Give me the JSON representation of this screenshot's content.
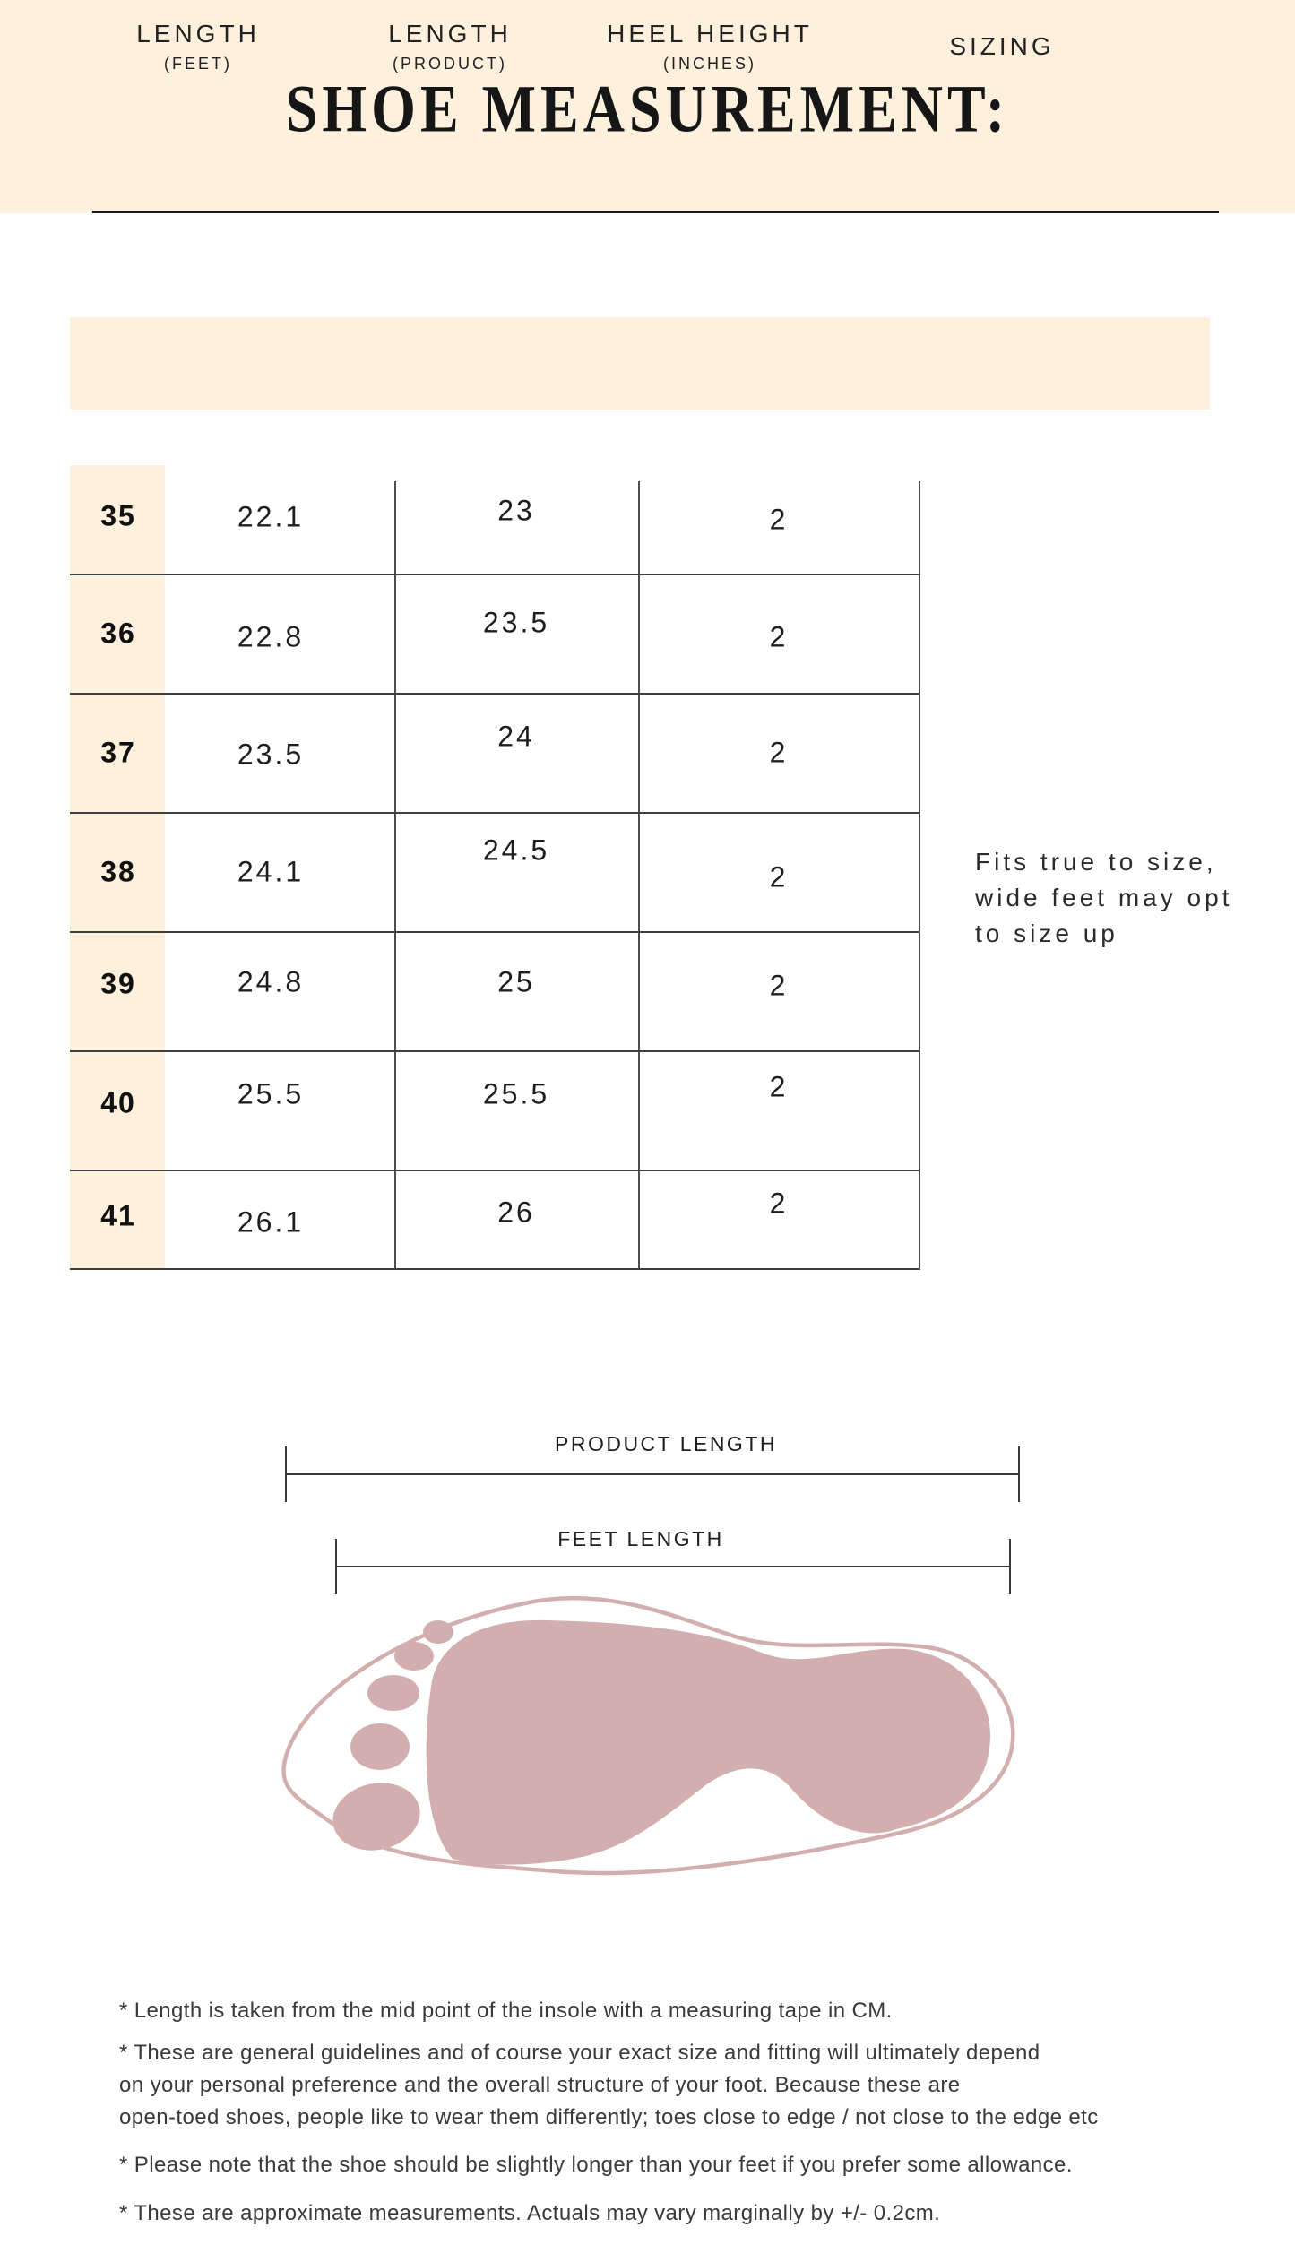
{
  "title": "SHOE MEASUREMENT:",
  "table": {
    "headers": [
      {
        "label": "LENGTH",
        "sub": "(FEET)"
      },
      {
        "label": "LENGTH",
        "sub": "(PRODUCT)"
      },
      {
        "label": "HEEL HEIGHT",
        "sub": "(INCHES)"
      },
      {
        "label": "SIZING",
        "sub": ""
      }
    ],
    "rows": [
      {
        "size": "35",
        "feet": "22.1",
        "product": "23",
        "heel": "2"
      },
      {
        "size": "36",
        "feet": "22.8",
        "product": "23.5",
        "heel": "2"
      },
      {
        "size": "37",
        "feet": "23.5",
        "product": "24",
        "heel": "2"
      },
      {
        "size": "38",
        "feet": "24.1",
        "product": "24.5",
        "heel": "2"
      },
      {
        "size": "39",
        "feet": "24.8",
        "product": "25",
        "heel": "2"
      },
      {
        "size": "40",
        "feet": "25.5",
        "product": "25.5",
        "heel": "2"
      },
      {
        "size": "41",
        "feet": "26.1",
        "product": "26",
        "heel": "2"
      }
    ]
  },
  "sizing_note": {
    "lines": [
      "Fits true to size,",
      "wide feet may opt",
      "to size up"
    ]
  },
  "diagram": {
    "product_label": "PRODUCT LENGTH",
    "feet_label": "FEET LENGTH"
  },
  "footnotes": [
    {
      "lines": [
        "* Length is taken from the mid point of the insole with a measuring tape in CM."
      ]
    },
    {
      "lines": [
        "* These are general guidelines and of course your exact size and fitting will ultimately depend",
        "on your personal preference and the overall structure of your foot. Because these are",
        "open-toed shoes, people like to wear them differently; toes close to edge / not close to the edge etc"
      ]
    },
    {
      "lines": [
        "* Please note that the shoe should be slightly longer than your feet if you prefer some allowance."
      ]
    },
    {
      "lines": [
        "* These are approximate measurements. Actuals may vary marginally by +/- 0.2cm."
      ]
    }
  ],
  "colors": {
    "cream": "#fdf0dd",
    "foot_rose": "#d3aeae",
    "ink": "#1c1c1c"
  }
}
